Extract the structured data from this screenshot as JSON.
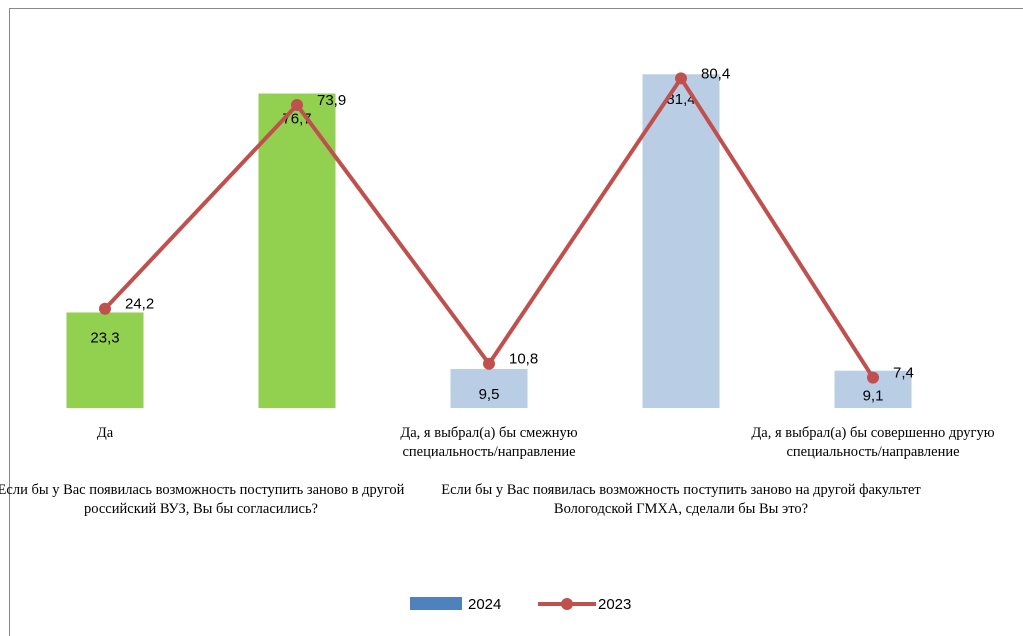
{
  "chart_data": {
    "type": "bar_line",
    "categories": [
      "Да",
      null,
      "Да, я выбрал(а) бы смежную специальность/направление",
      null,
      "Да, я выбрал(а) бы совершенно другую специальность/направление"
    ],
    "group_labels": [
      "Если бы у Вас появилась возможность поступить заново в другой российский ВУЗ, Вы бы согласились?",
      "Если бы у Вас появилась возможность поступить заново на другой факультет Вологодской ГМХА, сделали бы Вы это?"
    ],
    "series": [
      {
        "name": "2024",
        "type": "bar",
        "color": "#4f81bd",
        "colors": [
          "#92d050",
          "#92d050",
          "#b9cde5",
          "#b9cde5",
          "#b9cde5"
        ],
        "values": [
          23.3,
          76.7,
          9.5,
          81.4,
          9.1
        ],
        "value_labels": [
          "23,3",
          "76,7",
          "9,5",
          "81,4",
          "9,1"
        ]
      },
      {
        "name": "2023",
        "type": "line",
        "color": "#c0504d",
        "values": [
          24.2,
          73.9,
          10.8,
          80.4,
          7.4
        ],
        "value_labels": [
          "24,2",
          "73,9",
          "10,8",
          "80,4",
          "7,4"
        ]
      }
    ],
    "ylim": [
      0,
      90
    ],
    "legend": "bottom"
  }
}
